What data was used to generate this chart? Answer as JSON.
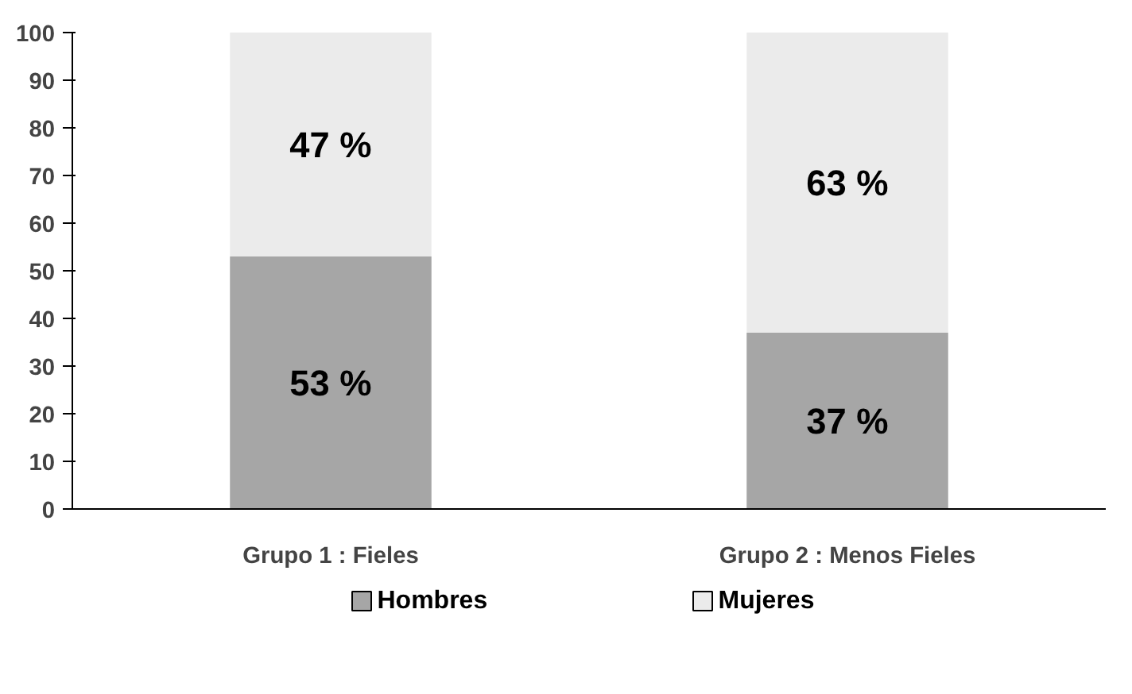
{
  "chart_data": {
    "type": "bar",
    "stacked": true,
    "categories": [
      "Grupo 1 : Fieles",
      "Grupo 2 : Menos Fieles"
    ],
    "series": [
      {
        "name": "Hombres",
        "color": "#a6a6a6",
        "values": [
          53,
          37
        ],
        "value_labels": [
          "53 %",
          "37 %"
        ]
      },
      {
        "name": "Mujeres",
        "color": "#ebebeb",
        "values": [
          47,
          63
        ],
        "value_labels": [
          "47 %",
          "63 %"
        ]
      }
    ],
    "ylim": [
      0,
      100
    ],
    "yticks": [
      0,
      10,
      20,
      30,
      40,
      50,
      60,
      70,
      80,
      90,
      100
    ],
    "grid": false,
    "legend": "bottom"
  }
}
